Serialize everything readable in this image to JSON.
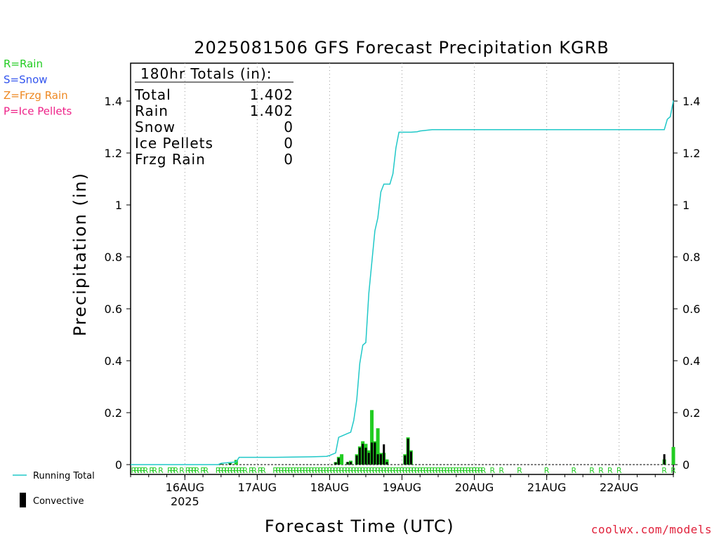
{
  "chart_data": {
    "type": "bar",
    "title": "2025081506 GFS Forecast Precipitation KGRB",
    "ylabel": "Precipitation (in)",
    "xlabel": "Forecast Time (UTC)",
    "ylim": [
      -0.04,
      1.55
    ],
    "xlim_hours": [
      0,
      180
    ],
    "yticks": [
      "0",
      "0.2",
      "0.4",
      "0.6",
      "0.8",
      "1",
      "1.2",
      "1.4"
    ],
    "x_tick_labels": [
      {
        "label": "16AUG",
        "sub": "2025",
        "hour": 18
      },
      {
        "label": "17AUG",
        "sub": "",
        "hour": 42
      },
      {
        "label": "18AUG",
        "sub": "",
        "hour": 66
      },
      {
        "label": "19AUG",
        "sub": "",
        "hour": 90
      },
      {
        "label": "20AUG",
        "sub": "",
        "hour": 114
      },
      {
        "label": "21AUG",
        "sub": "",
        "hour": 138
      },
      {
        "label": "22AUG",
        "sub": "",
        "hour": 162
      }
    ],
    "grid": "vertical dotted at 00Z",
    "totals_box": {
      "heading": "180hr Totals (in):",
      "rows": [
        {
          "label": "Total",
          "value": "1.402"
        },
        {
          "label": "Rain",
          "value": "1.402"
        },
        {
          "label": "Snow",
          "value": "0"
        },
        {
          "label": "Ice Pellets",
          "value": "0"
        },
        {
          "label": "Frzg Rain",
          "value": "0"
        }
      ]
    },
    "ptype_legend": [
      {
        "label": "R=Rain",
        "color": "#22cc22"
      },
      {
        "label": "S=Snow",
        "color": "#3355ee"
      },
      {
        "label": "Z=Frzg Rain",
        "color": "#ee8822"
      },
      {
        "label": "P=Ice Pellets",
        "color": "#ee2288"
      }
    ],
    "series_legend": [
      {
        "label": "Running Total",
        "color": "#20c8c8"
      },
      {
        "label": "Convective",
        "color": "#000000"
      }
    ],
    "running_total": {
      "color": "#20c8c8",
      "x_hours": [
        0,
        29,
        30,
        35,
        36,
        48,
        60,
        65,
        66,
        68,
        69,
        70,
        72,
        73,
        74,
        75,
        76,
        77,
        78,
        79,
        80,
        81,
        82,
        83,
        84,
        85,
        86,
        87,
        88,
        89,
        91,
        92,
        93,
        95,
        96,
        100,
        104,
        108,
        120,
        168,
        177,
        178,
        179,
        180
      ],
      "y": [
        0,
        0,
        0.005,
        0.01,
        0.028,
        0.028,
        0.03,
        0.032,
        0.035,
        0.045,
        0.105,
        0.11,
        0.12,
        0.125,
        0.17,
        0.25,
        0.39,
        0.46,
        0.47,
        0.66,
        0.78,
        0.9,
        0.95,
        1.05,
        1.08,
        1.08,
        1.08,
        1.12,
        1.22,
        1.28,
        1.28,
        1.28,
        1.28,
        1.282,
        1.285,
        1.29,
        1.29,
        1.29,
        1.29,
        1.29,
        1.29,
        1.33,
        1.34,
        1.402
      ]
    },
    "total_bars": {
      "color": "#22cc22",
      "x_hours": [
        30,
        33,
        35,
        68,
        69,
        70,
        72,
        73,
        75,
        76,
        77,
        78,
        79,
        80,
        81,
        82,
        83,
        84,
        85,
        91,
        92,
        93,
        177,
        180
      ],
      "y": [
        0.003,
        0.006,
        0.018,
        0.01,
        0.03,
        0.04,
        0.01,
        0.015,
        0.04,
        0.07,
        0.09,
        0.08,
        0.055,
        0.21,
        0.09,
        0.14,
        0.045,
        0.045,
        0.02,
        0.04,
        0.105,
        0.055,
        0.02,
        0.068
      ]
    },
    "convective_bars": {
      "color": "#000000",
      "x_hours": [
        30,
        33,
        68,
        69,
        72,
        73,
        75,
        76,
        77,
        78,
        79,
        80,
        81,
        82,
        83,
        84,
        85,
        91,
        92,
        93,
        177
      ],
      "y": [
        0.002,
        0.004,
        0.008,
        0.025,
        0.01,
        0.01,
        0.035,
        0.065,
        0.08,
        0.065,
        0.045,
        0.085,
        0.085,
        0.04,
        0.04,
        0.078,
        0.01,
        0.035,
        0.1,
        0.05,
        0.04
      ]
    },
    "ptype_marks": {
      "symbol": "R",
      "color": "#22cc22",
      "x_hours": [
        1,
        2,
        3,
        4,
        5,
        7,
        8,
        10,
        13,
        14,
        15,
        17,
        19,
        20,
        21,
        22,
        24,
        25,
        29,
        30,
        31,
        32,
        33,
        34,
        35,
        36,
        37,
        38,
        40,
        41,
        43,
        44,
        48,
        49,
        50,
        51,
        52,
        53,
        54,
        55,
        56,
        57,
        58,
        59,
        60,
        61,
        62,
        63,
        64,
        65,
        66,
        67,
        68,
        69,
        70,
        71,
        72,
        73,
        74,
        75,
        76,
        77,
        78,
        79,
        80,
        81,
        82,
        83,
        84,
        85,
        86,
        87,
        88,
        89,
        90,
        91,
        92,
        93,
        94,
        95,
        96,
        97,
        98,
        99,
        100,
        101,
        102,
        103,
        104,
        105,
        106,
        107,
        108,
        109,
        110,
        111,
        112,
        113,
        114,
        115,
        116,
        117,
        120,
        123,
        129,
        138,
        147,
        153,
        156,
        159,
        162,
        177,
        180
      ]
    }
  },
  "branding": {
    "credit": "coolwx.com/models"
  }
}
